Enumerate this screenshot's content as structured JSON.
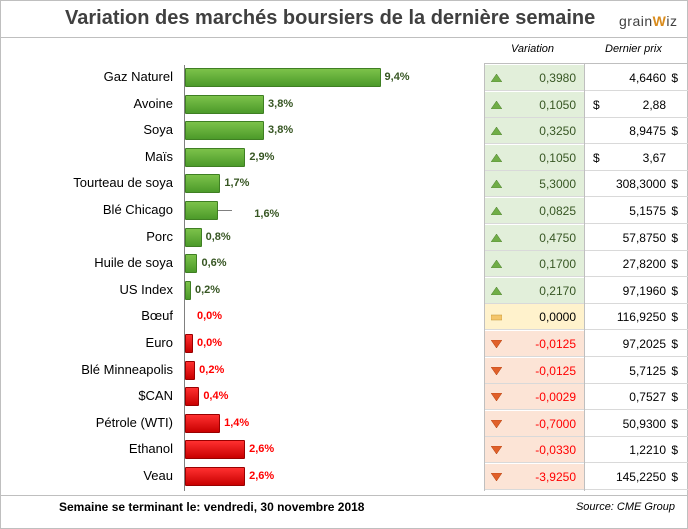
{
  "title": "Variation des marchés boursiers de la dernière semaine",
  "logo": {
    "part1": "grain",
    "part2": "W",
    "part3": "iz"
  },
  "columns": {
    "variation": "Variation",
    "prix": "Dernier prix"
  },
  "footer": {
    "label": "Semaine se terminant le:",
    "date": "vendredi, 30 novembre 2018",
    "source": "Source: CME Group"
  },
  "colors": {
    "up": "#4c9a2a",
    "down": "#e00000",
    "flat": "#f4c56a"
  },
  "chart_data": {
    "type": "bar",
    "orientation": "horizontal",
    "title": "Variation des marchés boursiers de la dernière semaine",
    "categories": [
      "Gaz Naturel",
      "Avoine",
      "Soya",
      "Maïs",
      "Tourteau de soya",
      "Blé Chicago",
      "Porc",
      "Huile de soya",
      "US Index",
      "Bœuf",
      "Euro",
      "Blé Minneapolis",
      "$CAN",
      "Pétrole (WTI)",
      "Ethanol",
      "Veau"
    ],
    "values": [
      9.4,
      3.8,
      3.8,
      2.9,
      1.7,
      1.6,
      0.8,
      0.6,
      0.2,
      0.0,
      0.0,
      0.2,
      0.4,
      1.4,
      2.6,
      2.6
    ],
    "labels": [
      "9,4%",
      "3,8%",
      "3,8%",
      "2,9%",
      "1,7%",
      "1,6%",
      "0,8%",
      "0,6%",
      "0,2%",
      "0,0%",
      "0,0%",
      "0,2%",
      "0,4%",
      "1,4%",
      "2,6%",
      "2,6%"
    ],
    "direction": [
      "up",
      "up",
      "up",
      "up",
      "up",
      "up",
      "up",
      "up",
      "up",
      "flat",
      "down",
      "down",
      "down",
      "down",
      "down",
      "down"
    ],
    "xlim": [
      0,
      10
    ],
    "grid": false
  },
  "table": [
    {
      "variation": "0,3980",
      "dir": "up",
      "cur_left": "",
      "price": "4,6460",
      "cur_right": "$"
    },
    {
      "variation": "0,1050",
      "dir": "up",
      "cur_left": "$",
      "price": "2,88",
      "cur_right": ""
    },
    {
      "variation": "0,3250",
      "dir": "up",
      "cur_left": "",
      "price": "8,9475",
      "cur_right": "$"
    },
    {
      "variation": "0,1050",
      "dir": "up",
      "cur_left": "$",
      "price": "3,67",
      "cur_right": ""
    },
    {
      "variation": "5,3000",
      "dir": "up",
      "cur_left": "",
      "price": "308,3000",
      "cur_right": "$"
    },
    {
      "variation": "0,0825",
      "dir": "up",
      "cur_left": "",
      "price": "5,1575",
      "cur_right": "$"
    },
    {
      "variation": "0,4750",
      "dir": "up",
      "cur_left": "",
      "price": "57,8750",
      "cur_right": "$"
    },
    {
      "variation": "0,1700",
      "dir": "up",
      "cur_left": "",
      "price": "27,8200",
      "cur_right": "$"
    },
    {
      "variation": "0,2170",
      "dir": "up",
      "cur_left": "",
      "price": "97,1960",
      "cur_right": "$"
    },
    {
      "variation": "0,0000",
      "dir": "flat",
      "cur_left": "",
      "price": "116,9250",
      "cur_right": "$"
    },
    {
      "variation": "-0,0125",
      "dir": "down",
      "cur_left": "",
      "price": "97,2025",
      "cur_right": "$"
    },
    {
      "variation": "-0,0125",
      "dir": "down",
      "cur_left": "",
      "price": "5,7125",
      "cur_right": "$"
    },
    {
      "variation": "-0,0029",
      "dir": "down",
      "cur_left": "",
      "price": "0,7527",
      "cur_right": "$"
    },
    {
      "variation": "-0,7000",
      "dir": "down",
      "cur_left": "",
      "price": "50,9300",
      "cur_right": "$"
    },
    {
      "variation": "-0,0330",
      "dir": "down",
      "cur_left": "",
      "price": "1,2210",
      "cur_right": "$"
    },
    {
      "variation": "-3,9250",
      "dir": "down",
      "cur_left": "",
      "price": "145,2250",
      "cur_right": "$"
    }
  ]
}
